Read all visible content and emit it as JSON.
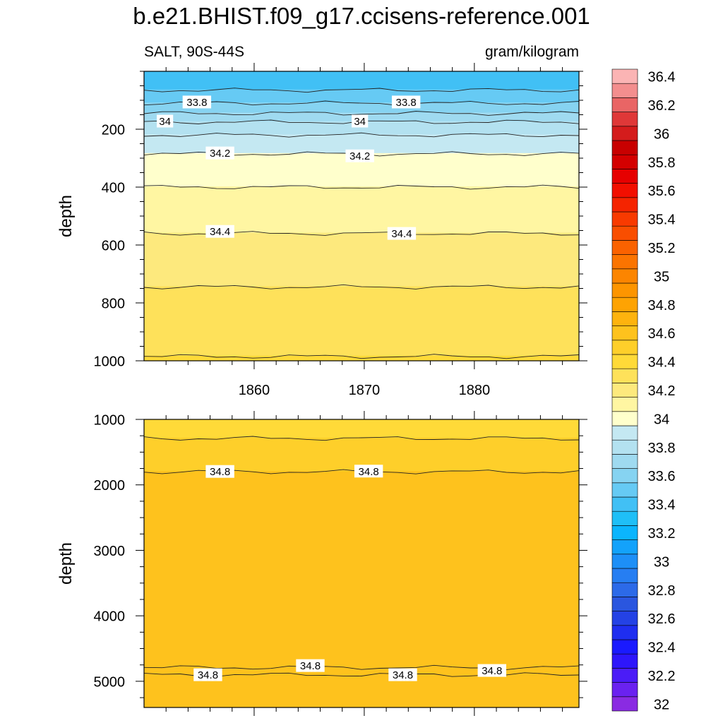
{
  "title": "b.e21.BHIST.f09_g17.ccisens-reference.001",
  "subtitle": "SALT, 90S-44S",
  "units": "gram/kilogram",
  "colors": {
    "background": "#ffffff",
    "contour_line": "#222222",
    "label_box": "#ffffff"
  },
  "chart_data": [
    {
      "type": "heatmap",
      "name": "upper-panel",
      "ylabel": "depth",
      "x_ticks": [
        1860,
        1870,
        1880
      ],
      "x_tick_labels": [
        "1860",
        "1870",
        "1880"
      ],
      "x_range": [
        1850,
        1889.5
      ],
      "y_range": [
        0,
        1000
      ],
      "y_reversed": true,
      "y_ticks": [
        200,
        400,
        600,
        800,
        1000
      ],
      "y_tick_labels": [
        "200",
        "400",
        "600",
        "800",
        "1000"
      ],
      "bands": [
        {
          "from": 0,
          "to": 65,
          "value_range": "33.6-33.7",
          "color": "#41c0f5"
        },
        {
          "from": 65,
          "to": 110,
          "value_range": "33.7-33.8",
          "color": "#66caf4"
        },
        {
          "from": 110,
          "to": 145,
          "value_range": "33.8-33.9",
          "color": "#86d3f1"
        },
        {
          "from": 145,
          "to": 175,
          "value_range": "33.9-34.0",
          "color": "#9fdaf0"
        },
        {
          "from": 175,
          "to": 220,
          "value_range": "34.0-34.1",
          "color": "#b3e1f0"
        },
        {
          "from": 220,
          "to": 285,
          "value_range": "34.1-34.2",
          "color": "#c4e8f2"
        },
        {
          "from": 285,
          "to": 400,
          "value_range": "34.2-34.3",
          "color": "#ffffcc"
        },
        {
          "from": 400,
          "to": 560,
          "value_range": "34.3-34.4",
          "color": "#fff6a2"
        },
        {
          "from": 560,
          "to": 745,
          "value_range": "34.4-34.5",
          "color": "#fde97d"
        },
        {
          "from": 745,
          "to": 985,
          "value_range": "34.5-34.6",
          "color": "#fee15a"
        },
        {
          "from": 985,
          "to": 1000,
          "value_range": "34.6-34.7",
          "color": "#ffda38"
        }
      ],
      "contours": [
        {
          "depth": 65,
          "level": "33.7"
        },
        {
          "depth": 110,
          "level": "33.8"
        },
        {
          "depth": 145,
          "level": "33.9"
        },
        {
          "depth": 175,
          "level": "34"
        },
        {
          "depth": 220,
          "level": "34.1"
        },
        {
          "depth": 285,
          "level": "34.2"
        },
        {
          "depth": 400,
          "level": "34.3"
        },
        {
          "depth": 560,
          "level": "34.4"
        },
        {
          "depth": 745,
          "level": "34.5"
        },
        {
          "depth": 985,
          "level": "34.6"
        }
      ],
      "contour_labels": [
        {
          "text": "33.8",
          "x": 1854.8,
          "depth": 106
        },
        {
          "text": "33.8",
          "x": 1873.8,
          "depth": 106
        },
        {
          "text": "34",
          "x": 1851.9,
          "depth": 172
        },
        {
          "text": "34",
          "x": 1869.6,
          "depth": 172
        },
        {
          "text": "34.2",
          "x": 1856.9,
          "depth": 282
        },
        {
          "text": "34.2",
          "x": 1869.6,
          "depth": 292
        },
        {
          "text": "34.4",
          "x": 1856.9,
          "depth": 553
        },
        {
          "text": "34.4",
          "x": 1873.4,
          "depth": 560
        }
      ]
    },
    {
      "type": "heatmap",
      "name": "lower-panel",
      "ylabel": "depth",
      "x_range": [
        1850,
        1889.5
      ],
      "y_range": [
        1000,
        5400
      ],
      "y_reversed": true,
      "y_ticks": [
        1000,
        2000,
        3000,
        4000,
        5000
      ],
      "y_tick_labels": [
        "1000",
        "2000",
        "3000",
        "4000",
        "5000"
      ],
      "bands": [
        {
          "from": 1000,
          "to": 1290,
          "value_range": "34.6-34.7",
          "color": "#ffda38"
        },
        {
          "from": 1290,
          "to": 1800,
          "value_range": "34.7-34.8",
          "color": "#fecf2a"
        },
        {
          "from": 1800,
          "to": 4790,
          "value_range": "34.8-34.9",
          "color": "#fec21d"
        },
        {
          "from": 4790,
          "to": 4900,
          "value_range": "34.8-34.9",
          "color": "#fec21d"
        },
        {
          "from": 4900,
          "to": 5400,
          "value_range": "34.8-34.9",
          "color": "#fec21d"
        }
      ],
      "contours": [
        {
          "depth": 1290,
          "level": "34.7"
        },
        {
          "depth": 1800,
          "level": "34.8"
        },
        {
          "depth": 4790,
          "level": "34.8"
        },
        {
          "depth": 4900,
          "level": "34.8"
        }
      ],
      "contour_labels": [
        {
          "text": "34.8",
          "x": 1856.9,
          "depth": 1795
        },
        {
          "text": "34.8",
          "x": 1870.4,
          "depth": 1790
        },
        {
          "text": "34.8",
          "x": 1865.1,
          "depth": 4760
        },
        {
          "text": "34.8",
          "x": 1855.8,
          "depth": 4900
        },
        {
          "text": "34.8",
          "x": 1873.5,
          "depth": 4900
        },
        {
          "text": "34.8",
          "x": 1881.6,
          "depth": 4835
        }
      ]
    }
  ],
  "colorbar": {
    "levels": [
      "32",
      "32.2",
      "32.4",
      "32.6",
      "32.8",
      "33",
      "33.2",
      "33.4",
      "33.6",
      "33.8",
      "34",
      "34.2",
      "34.4",
      "34.6",
      "34.8",
      "35",
      "35.2",
      "35.4",
      "35.6",
      "35.8",
      "36",
      "36.2",
      "36.4"
    ],
    "colors": [
      "#8a2be2",
      "#6a22f0",
      "#4b1cf7",
      "#2e16fb",
      "#1a1aff",
      "#1f2ef0",
      "#2442e5",
      "#2a56df",
      "#2c6ae8",
      "#267ef2",
      "#1d8ff7",
      "#13a2fb",
      "#0bb5fd",
      "#1fbff7",
      "#41c0f5",
      "#66caf4",
      "#86d3f1",
      "#9fdaf0",
      "#b3e1f0",
      "#c4e8f2",
      "#ffffcc",
      "#fff6a2",
      "#fde97d",
      "#fee15a",
      "#ffda38",
      "#fecf2a",
      "#fec21d",
      "#feb30e",
      "#fea303",
      "#fd9500",
      "#fc8500",
      "#fb7400",
      "#fa6200",
      "#f94e00",
      "#f83a00",
      "#f52400",
      "#f20f00",
      "#e60000",
      "#d40000",
      "#c80000",
      "#d41c1c",
      "#df3838",
      "#e96565",
      "#f38e8e",
      "#fbb4b4"
    ]
  }
}
